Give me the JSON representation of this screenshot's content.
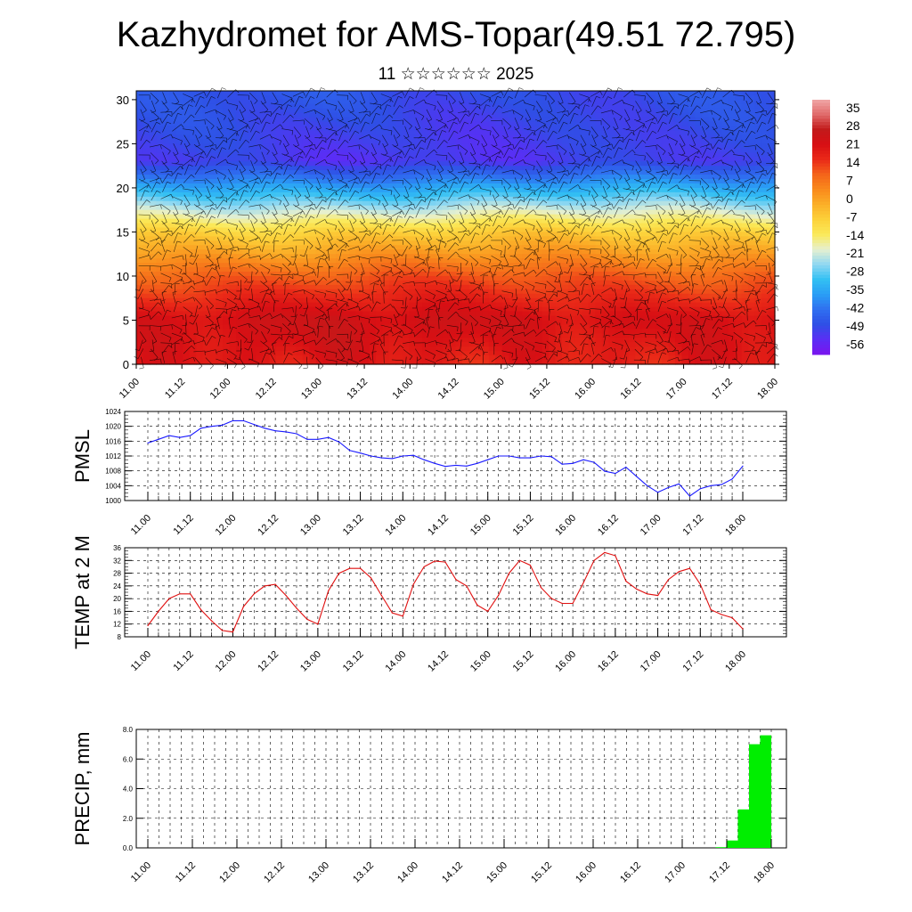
{
  "title": "Kazhydromet for AMS-Topar(49.51 72.795)",
  "subtitle": "11 ☆☆☆☆☆☆ 2025",
  "time_ticks": [
    "11.00",
    "11.12",
    "12.00",
    "12.12",
    "13.00",
    "13.12",
    "14.00",
    "14.12",
    "15.00",
    "15.12",
    "16.00",
    "16.12",
    "17.00",
    "17.12",
    "18.00"
  ],
  "chart_data": [
    {
      "type": "heatmap",
      "name": "temperature-wind cross-section",
      "x_ticks": [
        "11.00",
        "11.12",
        "12.00",
        "12.12",
        "13.00",
        "13.12",
        "14.00",
        "14.12",
        "15.00",
        "15.12",
        "16.00",
        "16.12",
        "17.00",
        "17.12",
        "18.00"
      ],
      "y_ticks": [
        "0",
        "5",
        "10",
        "15",
        "20",
        "25",
        "30"
      ],
      "ylim": [
        0,
        31
      ],
      "colorbar_labels": [
        "35",
        "28",
        "21",
        "14",
        "7",
        "0",
        "-7",
        "-14",
        "-21",
        "-28",
        "-35",
        "-42",
        "-49",
        "-56"
      ],
      "colorbar_range": [
        -60,
        38
      ],
      "colormap": [
        "#7a14ee",
        "#5a2ef5",
        "#2f4fe6",
        "#2f6ff0",
        "#2a9ef5",
        "#33c0f3",
        "#90d8f2",
        "#e6f0d0",
        "#fbea5a",
        "#fcd13a",
        "#fbb028",
        "#f98a1c",
        "#f4641a",
        "#ea2a18",
        "#d80f14",
        "#c21a1a",
        "#e06a6a",
        "#f0a6a6"
      ],
      "profile_temps_by_height": [
        {
          "h": 0,
          "t": 18
        },
        {
          "h": 5,
          "t": 22
        },
        {
          "h": 10,
          "t": 10
        },
        {
          "h": 15,
          "t": -8
        },
        {
          "h": 20,
          "t": -35
        },
        {
          "h": 23,
          "t": -52
        },
        {
          "h": 27,
          "t": -50
        },
        {
          "h": 31,
          "t": -48
        }
      ],
      "wind_barbs": true
    },
    {
      "type": "line",
      "ylabel": "PMSL",
      "ylim": [
        1000,
        1024
      ],
      "y_ticks": [
        "1000",
        "1004",
        "1008",
        "1012",
        "1016",
        "1020",
        "1024"
      ],
      "x_ticks": [
        "11.00",
        "11.12",
        "12.00",
        "12.12",
        "13.00",
        "13.12",
        "14.00",
        "14.12",
        "15.00",
        "15.12",
        "16.00",
        "16.12",
        "17.00",
        "17.12",
        "18.00"
      ],
      "color": "#1a1aff",
      "x_hours_step": 3,
      "values": [
        1015.5,
        1016.5,
        1017.5,
        1017.0,
        1017.5,
        1019.5,
        1020.0,
        1020.3,
        1021.5,
        1021.5,
        1020.5,
        1019.5,
        1018.8,
        1018.5,
        1018.0,
        1016.5,
        1016.5,
        1017.0,
        1015.8,
        1013.5,
        1012.8,
        1012.0,
        1011.5,
        1011.3,
        1012.0,
        1012.2,
        1011.0,
        1010.0,
        1009.2,
        1009.5,
        1009.3,
        1010.0,
        1011.0,
        1012.0,
        1012.0,
        1011.5,
        1011.5,
        1012.0,
        1011.8,
        1009.8,
        1010.0,
        1011.0,
        1010.3,
        1007.9,
        1007.3,
        1009.0,
        1006.5,
        1004.0,
        1002.2,
        1003.5,
        1004.5,
        1001.2,
        1003.2,
        1004.0,
        1004.3,
        1005.8,
        1009.3
      ]
    },
    {
      "type": "line",
      "ylabel": "TEMP at 2 M",
      "ylim": [
        8,
        36
      ],
      "y_ticks": [
        "8",
        "12",
        "16",
        "20",
        "24",
        "28",
        "32",
        "36"
      ],
      "x_ticks": [
        "11.00",
        "11.12",
        "12.00",
        "12.12",
        "13.00",
        "13.12",
        "14.00",
        "14.12",
        "15.00",
        "15.12",
        "16.00",
        "16.12",
        "17.00",
        "17.12",
        "18.00"
      ],
      "color": "#e01010",
      "x_hours_step": 3,
      "values": [
        11.5,
        16.0,
        20.0,
        21.5,
        21.5,
        16.5,
        13.0,
        10.0,
        9.5,
        17.5,
        21.5,
        24.0,
        24.5,
        21.0,
        17.0,
        13.5,
        12.0,
        22.5,
        28.0,
        29.5,
        29.5,
        26.5,
        21.0,
        15.5,
        14.5,
        24.5,
        30.0,
        31.8,
        31.5,
        26.0,
        24.0,
        18.0,
        16.0,
        21.0,
        28.0,
        32.0,
        30.5,
        23.5,
        20.0,
        18.5,
        18.5,
        25.0,
        32.0,
        34.5,
        33.5,
        25.5,
        23.0,
        21.5,
        21.0,
        26.0,
        28.5,
        29.5,
        24.5,
        16.5,
        15.0,
        14.0,
        10.5
      ]
    },
    {
      "type": "bar",
      "ylabel": "PRECIP, mm",
      "ylim": [
        0,
        8
      ],
      "y_ticks": [
        "0.0",
        "2.0",
        "4.0",
        "6.0",
        "8.0"
      ],
      "x_ticks": [
        "11.00",
        "11.12",
        "12.00",
        "12.12",
        "13.00",
        "13.12",
        "14.00",
        "14.12",
        "15.00",
        "15.12",
        "16.00",
        "16.12",
        "17.00",
        "17.12",
        "18.00"
      ],
      "color": "#00ee00",
      "bars": [
        {
          "start_hour": 153,
          "end_hour": 156,
          "value": 0.05
        },
        {
          "start_hour": 156,
          "end_hour": 159,
          "value": 0.5
        },
        {
          "start_hour": 159,
          "end_hour": 162,
          "value": 2.6
        },
        {
          "start_hour": 162,
          "end_hour": 165,
          "value": 7.0
        },
        {
          "start_hour": 165,
          "end_hour": 168,
          "value": 7.6
        }
      ]
    }
  ]
}
